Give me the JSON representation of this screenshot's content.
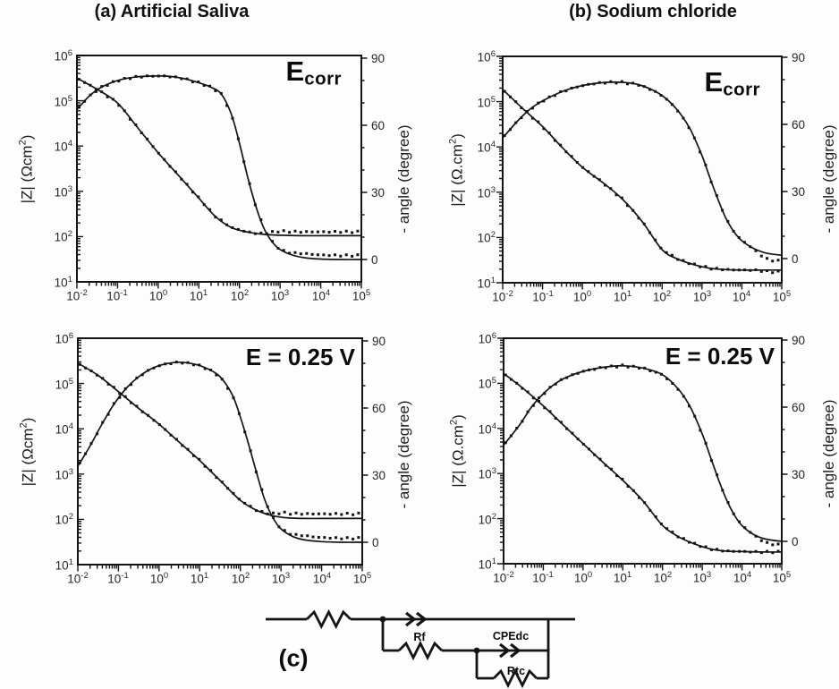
{
  "titles": {
    "a": "(a) Artificial Saliva",
    "b": "(b) Sodium chloride"
  },
  "colors": {
    "ink": "#141414",
    "tick_label": "#272727",
    "background": "#fdfdfd"
  },
  "chart_data": [
    {
      "id": "a",
      "type": "line",
      "panel_title": "(a) Artificial Saliva",
      "annotation_main": "E",
      "annotation_sub": "corr",
      "x_axis": {
        "scale": "log10",
        "tick_exponents": [
          -2,
          -1,
          0,
          1,
          2,
          3,
          4,
          5
        ]
      },
      "y_left": {
        "label_pre": "|Z| (Ωcm",
        "label_sup": "2",
        "label_post": ")",
        "scale": "log10",
        "tick_exponents": [
          6,
          5,
          4,
          3,
          2,
          1
        ]
      },
      "y_right": {
        "label": "- angle (degree)",
        "ticks": [
          90,
          60,
          30,
          0
        ],
        "minor_ticks": [
          10,
          20,
          40,
          50,
          70,
          80
        ],
        "range": [
          -10,
          90
        ]
      },
      "series": [
        {
          "name": "impedance-fit-line",
          "axis": "z",
          "style": "line",
          "points": [
            [
              -2,
              5.5
            ],
            [
              -1.5,
              5.25
            ],
            [
              -1,
              4.95
            ],
            [
              -0.5,
              4.4
            ],
            [
              0,
              3.85
            ],
            [
              0.5,
              3.35
            ],
            [
              1,
              2.85
            ],
            [
              1.4,
              2.45
            ],
            [
              1.8,
              2.2
            ],
            [
              2.2,
              2.1
            ],
            [
              2.6,
              2.05
            ],
            [
              3,
              2.03
            ],
            [
              3.5,
              2.02
            ],
            [
              4,
              2.02
            ],
            [
              4.5,
              2.02
            ],
            [
              5,
              2.02
            ]
          ]
        },
        {
          "name": "impedance-measured-dots",
          "axis": "z",
          "style": "dots",
          "from_series": 0,
          "step": 0.14,
          "tail_from": 2.5,
          "tail_delta": 0.085
        },
        {
          "name": "phase-fit-line",
          "axis": "angle",
          "style": "line",
          "points": [
            [
              -2,
              67
            ],
            [
              -1.7,
              73
            ],
            [
              -1.4,
              77
            ],
            [
              -1,
              80
            ],
            [
              -0.6,
              81.5
            ],
            [
              -0.2,
              82
            ],
            [
              0.2,
              82
            ],
            [
              0.6,
              81
            ],
            [
              1,
              79
            ],
            [
              1.3,
              77
            ],
            [
              1.55,
              74
            ],
            [
              1.8,
              65
            ],
            [
              2,
              52
            ],
            [
              2.2,
              37
            ],
            [
              2.4,
              24
            ],
            [
              2.6,
              14
            ],
            [
              2.8,
              8
            ],
            [
              3,
              4.5
            ],
            [
              3.3,
              2
            ],
            [
              3.6,
              0.8
            ],
            [
              4,
              0.2
            ],
            [
              4.5,
              0
            ],
            [
              5,
              0
            ]
          ]
        },
        {
          "name": "phase-measured-dots",
          "axis": "angle",
          "style": "dots",
          "from_series": 2,
          "step": 0.14,
          "tail_from": 3.1,
          "tail_delta": 1.8
        }
      ]
    },
    {
      "id": "b",
      "type": "line",
      "panel_title": "(b) Sodium chloride",
      "annotation_main": "E",
      "annotation_sub": "corr",
      "x_axis": {
        "scale": "log10",
        "tick_exponents": [
          -2,
          -1,
          0,
          1,
          2,
          3,
          4,
          5
        ]
      },
      "y_left": {
        "label_pre": "|Z| (Ω.cm",
        "label_sup": "2",
        "label_post": ")",
        "scale": "log10",
        "tick_exponents": [
          6,
          5,
          4,
          3,
          2,
          1
        ]
      },
      "y_right": {
        "label": "- angle (degree)",
        "ticks": [
          90,
          60,
          30,
          0
        ],
        "minor_ticks": [
          10,
          20,
          40,
          50,
          70,
          80
        ],
        "range": [
          -10,
          90
        ]
      },
      "series": [
        {
          "name": "impedance-fit-line",
          "axis": "z",
          "style": "line",
          "points": [
            [
              -2,
              5.27
            ],
            [
              -1.5,
              4.85
            ],
            [
              -1,
              4.45
            ],
            [
              -0.5,
              3.98
            ],
            [
              0,
              3.55
            ],
            [
              0.5,
              3.22
            ],
            [
              1,
              2.85
            ],
            [
              1.5,
              2.35
            ],
            [
              2,
              1.73
            ],
            [
              2.4,
              1.52
            ],
            [
              2.8,
              1.4
            ],
            [
              3.2,
              1.32
            ],
            [
              3.6,
              1.29
            ],
            [
              4,
              1.28
            ],
            [
              4.5,
              1.28
            ],
            [
              5,
              1.28
            ]
          ]
        },
        {
          "name": "impedance-measured-dots",
          "axis": "z",
          "style": "dots",
          "from_series": 0,
          "step": 0.14,
          "tail_from": 4.3,
          "tail_delta": -0.04
        },
        {
          "name": "phase-fit-line",
          "axis": "angle",
          "style": "line",
          "points": [
            [
              -2,
              54
            ],
            [
              -1.6,
              62
            ],
            [
              -1.3,
              67
            ],
            [
              -1,
              70.5
            ],
            [
              -0.6,
              74
            ],
            [
              -0.2,
              76.5
            ],
            [
              0.2,
              78
            ],
            [
              0.6,
              78.8
            ],
            [
              1,
              78.8
            ],
            [
              1.4,
              77.8
            ],
            [
              1.8,
              75
            ],
            [
              2.1,
              71.5
            ],
            [
              2.4,
              66
            ],
            [
              2.7,
              58
            ],
            [
              3,
              46
            ],
            [
              3.2,
              36
            ],
            [
              3.4,
              26.5
            ],
            [
              3.6,
              18
            ],
            [
              3.8,
              12
            ],
            [
              4,
              8
            ],
            [
              4.3,
              4.5
            ],
            [
              4.6,
              2.5
            ],
            [
              5,
              1.5
            ]
          ]
        },
        {
          "name": "phase-measured-dots",
          "axis": "angle",
          "style": "dots",
          "from_series": 2,
          "step": 0.14,
          "tail_from": 4.2,
          "tail_delta": -2.8
        }
      ]
    },
    {
      "id": "c",
      "type": "line",
      "panel_title": "",
      "annotation_main": "E = 0.25 V",
      "annotation_sub": "",
      "x_axis": {
        "scale": "log10",
        "tick_exponents": [
          -2,
          -1,
          0,
          1,
          2,
          3,
          4,
          5
        ]
      },
      "y_left": {
        "label_pre": "|Z| (Ωcm",
        "label_sup": "2",
        "label_post": ")",
        "scale": "log10",
        "tick_exponents": [
          6,
          5,
          4,
          3,
          2,
          1
        ]
      },
      "y_right": {
        "label": "- angle (degree)",
        "ticks": [
          90,
          60,
          30,
          0
        ],
        "minor_ticks": [
          10,
          20,
          40,
          50,
          70,
          80
        ],
        "range": [
          -10,
          90
        ]
      },
      "series": [
        {
          "name": "impedance-fit-line",
          "axis": "z",
          "style": "line",
          "points": [
            [
              -2,
              5.45
            ],
            [
              -1.5,
              5.18
            ],
            [
              -1,
              4.82
            ],
            [
              -0.5,
              4.45
            ],
            [
              0,
              4.1
            ],
            [
              0.5,
              3.7
            ],
            [
              1,
              3.3
            ],
            [
              1.5,
              2.86
            ],
            [
              2,
              2.42
            ],
            [
              2.4,
              2.2
            ],
            [
              2.8,
              2.08
            ],
            [
              3.2,
              2.03
            ],
            [
              3.6,
              2.02
            ],
            [
              4,
              2.02
            ],
            [
              4.5,
              2.02
            ],
            [
              5,
              2.02
            ]
          ]
        },
        {
          "name": "impedance-measured-dots",
          "axis": "z",
          "style": "dots",
          "from_series": 0,
          "step": 0.14,
          "tail_from": 2.6,
          "tail_delta": 0.1
        },
        {
          "name": "phase-fit-line",
          "axis": "angle",
          "style": "line",
          "points": [
            [
              -2,
              34
            ],
            [
              -1.7,
              43
            ],
            [
              -1.4,
              53
            ],
            [
              -1.1,
              62
            ],
            [
              -0.8,
              69
            ],
            [
              -0.5,
              74
            ],
            [
              -0.2,
              77.5
            ],
            [
              0.1,
              79.5
            ],
            [
              0.5,
              80.5
            ],
            [
              0.9,
              79.5
            ],
            [
              1.2,
              77.5
            ],
            [
              1.5,
              74
            ],
            [
              1.8,
              66
            ],
            [
              2,
              56
            ],
            [
              2.2,
              44
            ],
            [
              2.4,
              31
            ],
            [
              2.6,
              19
            ],
            [
              2.8,
              11
            ],
            [
              3,
              6
            ],
            [
              3.3,
              2.5
            ],
            [
              3.6,
              1
            ],
            [
              4,
              0.3
            ],
            [
              4.5,
              0
            ],
            [
              5,
              0
            ]
          ]
        },
        {
          "name": "phase-measured-dots",
          "axis": "angle",
          "style": "dots",
          "from_series": 2,
          "step": 0.14,
          "tail_from": 3.1,
          "tail_delta": 1.8
        }
      ]
    },
    {
      "id": "d",
      "type": "line",
      "panel_title": "",
      "annotation_main": "E = 0.25 V",
      "annotation_sub": "",
      "x_axis": {
        "scale": "log10",
        "tick_exponents": [
          -2,
          -1,
          0,
          1,
          2,
          3,
          4,
          5
        ]
      },
      "y_left": {
        "label_pre": "|Z| (Ω.cm",
        "label_sup": "2",
        "label_post": ")",
        "scale": "log10",
        "tick_exponents": [
          6,
          5,
          4,
          3,
          2,
          1
        ]
      },
      "y_right": {
        "label": "- angle (degree)",
        "ticks": [
          90,
          60,
          30,
          0
        ],
        "minor_ticks": [
          10,
          20,
          40,
          50,
          70,
          80
        ],
        "range": [
          -10,
          90
        ]
      },
      "series": [
        {
          "name": "impedance-fit-line",
          "axis": "z",
          "style": "line",
          "points": [
            [
              -2,
              5.22
            ],
            [
              -1.5,
              4.88
            ],
            [
              -1,
              4.5
            ],
            [
              -0.5,
              4.08
            ],
            [
              0,
              3.66
            ],
            [
              0.5,
              3.25
            ],
            [
              1,
              2.85
            ],
            [
              1.5,
              2.4
            ],
            [
              2,
              1.85
            ],
            [
              2.4,
              1.6
            ],
            [
              2.8,
              1.44
            ],
            [
              3.2,
              1.33
            ],
            [
              3.6,
              1.28
            ],
            [
              4,
              1.27
            ],
            [
              4.5,
              1.26
            ],
            [
              5,
              1.26
            ]
          ]
        },
        {
          "name": "impedance-measured-dots",
          "axis": "z",
          "style": "dots",
          "from_series": 0,
          "step": 0.14,
          "tail_from": 5.1,
          "tail_delta": 0
        },
        {
          "name": "phase-fit-line",
          "axis": "angle",
          "style": "line",
          "points": [
            [
              -2,
              43
            ],
            [
              -1.6,
              52
            ],
            [
              -1.3,
              60
            ],
            [
              -1,
              66
            ],
            [
              -0.7,
              70.5
            ],
            [
              -0.4,
              73.5
            ],
            [
              0,
              76
            ],
            [
              0.5,
              77.8
            ],
            [
              1,
              78.5
            ],
            [
              1.5,
              77.5
            ],
            [
              2,
              74.5
            ],
            [
              2.4,
              68
            ],
            [
              2.7,
              60
            ],
            [
              3,
              48
            ],
            [
              3.2,
              38
            ],
            [
              3.4,
              28
            ],
            [
              3.6,
              19
            ],
            [
              3.8,
              12
            ],
            [
              4,
              7
            ],
            [
              4.3,
              3
            ],
            [
              4.6,
              1
            ],
            [
              5,
              0
            ]
          ]
        },
        {
          "name": "phase-measured-dots",
          "axis": "angle",
          "style": "dots",
          "from_series": 2,
          "step": 0.14,
          "tail_from": 4.2,
          "tail_delta": -1.8
        }
      ]
    }
  ],
  "circuit": {
    "label": "(c)",
    "labels": {
      "rf": "Rf",
      "cpe": "CPEdc",
      "rtc": "Rtc"
    },
    "components": [
      "solution-resistor",
      "film-CPE",
      "Rf",
      "CPEdc",
      "Rtc"
    ]
  }
}
